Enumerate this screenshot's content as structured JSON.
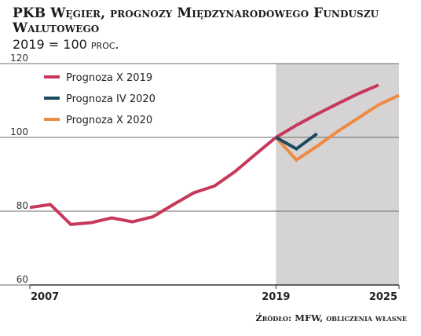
{
  "header": {
    "title": "PKB Węgier, prognozy Międzynarodowego Funduszu Walutowego",
    "subtitle": "2019 = 100 proc."
  },
  "footer": {
    "source": "Źródło: MFW, obliczenia własne"
  },
  "chart_data": {
    "type": "line",
    "title": "PKB Węgier, prognozy Międzynarodowego Funduszu Walutowego",
    "subtitle": "2019 = 100 proc.",
    "xlabel": "",
    "ylabel": "",
    "xlim": [
      2007,
      2025
    ],
    "ylim": [
      60,
      120
    ],
    "yticks": [
      60,
      80,
      100,
      120
    ],
    "xticks": [
      2007,
      2019,
      2025
    ],
    "grid": "horizontal",
    "legend": "top-left",
    "forecast_region": {
      "from": 2019,
      "to": 2025,
      "color": "#d6d3d4"
    },
    "series": [
      {
        "name": "Prognoza X 2019",
        "color": "#c8385a",
        "x": [
          2007,
          2008,
          2009,
          2010,
          2011,
          2012,
          2013,
          2014,
          2015,
          2016,
          2017,
          2018,
          2019,
          2020,
          2021,
          2022,
          2023,
          2024
        ],
        "values": [
          81.0,
          81.8,
          76.4,
          76.9,
          78.2,
          77.1,
          78.5,
          81.8,
          85.0,
          86.8,
          90.7,
          95.4,
          100.0,
          103.3,
          106.3,
          109.1,
          111.8,
          114.2
        ]
      },
      {
        "name": "Prognoza IV 2020",
        "color": "#1b4a5e",
        "x": [
          2019,
          2020,
          2021
        ],
        "values": [
          100.0,
          96.9,
          101.0
        ]
      },
      {
        "name": "Prognoza X 2020",
        "color": "#ee8a44",
        "x": [
          2019,
          2020,
          2021,
          2022,
          2023,
          2024,
          2025
        ],
        "values": [
          100.0,
          93.9,
          97.6,
          101.6,
          105.2,
          108.8,
          111.4
        ]
      }
    ]
  }
}
